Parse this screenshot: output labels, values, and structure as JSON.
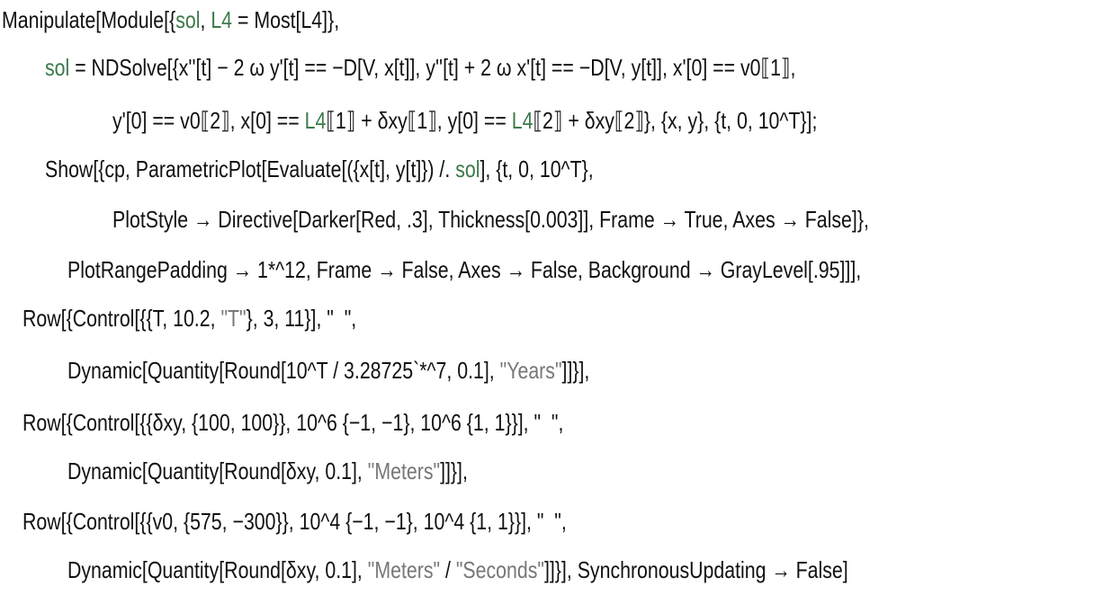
{
  "code": {
    "lines": [
      [
        "Manipulate[Module[{",
        "sol",
        ", ",
        "L4",
        " = Most[L4]},"
      ],
      [
        "sol",
        " = NDSolve[{x''[t] − 2 ω y'[t] == −D[V, x[t]], y''[t] + 2 ω x'[t] == −D[V, y[t]], x'[0] == v0⟦1⟧,"
      ],
      [
        "y'[0] == v0⟦2⟧, x[0] == ",
        "L4",
        "⟦1⟧ + δxy⟦1⟧, y[0] == ",
        "L4",
        "⟦2⟧ + δxy⟦2⟧}, {x, y}, {t, 0, 10^T}];"
      ],
      [
        "Show[{cp, ParametricPlot[Evaluate[({x[t], y[t]}) /. ",
        "sol",
        "], {t, 0, 10^T},"
      ],
      [
        "PlotStyle → Directive[Darker[Red, .3], Thickness[0.003]], Frame → True, Axes → False]},"
      ],
      [
        "PlotRangePadding → 1*^12, Frame → False, Axes → False, Background → GrayLevel[.95]]],"
      ],
      [
        "Row[{Control[{{T, 10.2, ",
        "\"T\"",
        "}, 3, 11}], \"  \","
      ],
      [
        "Dynamic[Quantity[Round[10^T / 3.28725`*^7, 0.1], ",
        "\"Years\"",
        "]]}],"
      ],
      [
        "Row[{Control[{{δxy, {100, 100}}, 10^6 {−1, −1}, 10^6 {1, 1}}], \"  \","
      ],
      [
        "Dynamic[Quantity[Round[δxy, 0.1], ",
        "\"Meters\"",
        "]]}],"
      ],
      [
        "Row[{Control[{{v0, {575, −300}}, 10^4 {−1, −1}, 10^4 {1, 1}}], \"  \","
      ],
      [
        "Dynamic[Quantity[Round[δxy, 0.1], ",
        "\"Meters\"",
        " / ",
        "\"Seconds\"",
        "]]}], SynchronousUpdating → False]"
      ]
    ]
  }
}
